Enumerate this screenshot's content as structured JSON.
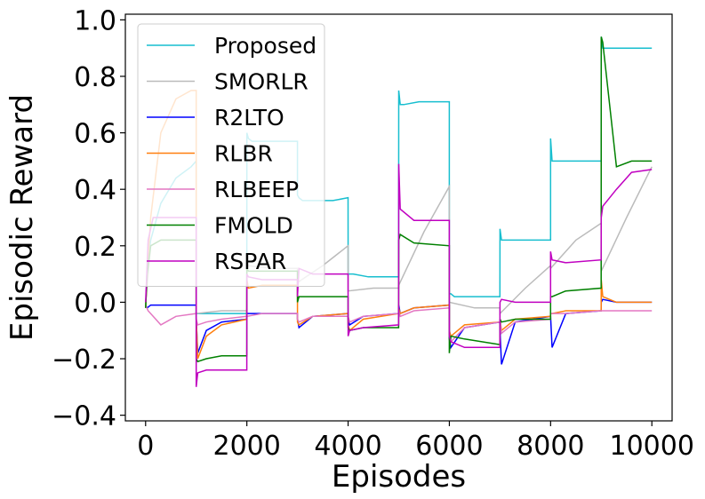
{
  "chart_data": {
    "type": "line",
    "xlabel": "Episodes",
    "ylabel": "Episodic Reward",
    "xlim": [
      -400,
      10400
    ],
    "ylim": [
      -0.42,
      1.02
    ],
    "xticks": [
      0,
      2000,
      4000,
      6000,
      8000,
      10000
    ],
    "xtick_labels": [
      "0",
      "2000",
      "4000",
      "6000",
      "8000",
      "10000"
    ],
    "yticks": [
      -0.4,
      -0.2,
      0.0,
      0.2,
      0.4,
      0.6,
      0.8,
      1.0
    ],
    "ytick_labels": [
      "−0.4",
      "−0.2",
      "0.0",
      "0.2",
      "0.4",
      "0.6",
      "0.8",
      "1.0"
    ],
    "grid": false,
    "legend_position": "top-left",
    "series": [
      {
        "name": "Proposed",
        "color": "#17becf",
        "x": [
          0,
          30,
          100,
          300,
          600,
          900,
          999,
          1000,
          1030,
          1100,
          1400,
          1700,
          1999,
          2000,
          2030,
          2100,
          2400,
          2700,
          2999,
          3000,
          3030,
          3100,
          3400,
          3700,
          3999,
          4000,
          4030,
          4100,
          4400,
          4700,
          4999,
          5000,
          5030,
          5100,
          5400,
          5700,
          5999,
          6000,
          6030,
          6100,
          6400,
          6700,
          6999,
          7000,
          7030,
          7100,
          7400,
          7700,
          7999,
          8000,
          8030,
          8100,
          8400,
          8700,
          8999,
          9000,
          9030,
          9100,
          9400,
          9700,
          9999
        ],
        "y": [
          -0.02,
          0.12,
          0.22,
          0.35,
          0.44,
          0.48,
          0.5,
          -0.04,
          -0.04,
          -0.04,
          -0.04,
          -0.04,
          -0.04,
          0.6,
          0.58,
          0.57,
          0.57,
          0.57,
          0.57,
          0.38,
          0.37,
          0.36,
          0.36,
          0.36,
          0.37,
          0.1,
          0.1,
          0.1,
          0.09,
          0.09,
          0.09,
          0.75,
          0.7,
          0.7,
          0.71,
          0.71,
          0.71,
          0.03,
          0.03,
          0.02,
          0.02,
          0.02,
          0.02,
          0.26,
          0.22,
          0.22,
          0.22,
          0.22,
          0.22,
          0.58,
          0.5,
          0.5,
          0.5,
          0.5,
          0.5,
          0.94,
          0.9,
          0.9,
          0.9,
          0.9,
          0.9
        ]
      },
      {
        "name": "SMORLR",
        "color": "#bbbbbb",
        "x": [
          0,
          100,
          300,
          600,
          999,
          1000,
          1500,
          1999,
          2000,
          2500,
          2999,
          3000,
          3500,
          3999,
          4000,
          4500,
          4999,
          5000,
          5500,
          5999,
          6000,
          6500,
          6999,
          7000,
          7500,
          7999,
          8000,
          8500,
          8999,
          9000,
          9500,
          9999
        ],
        "y": [
          0.0,
          0.2,
          0.22,
          0.22,
          0.22,
          -0.04,
          -0.03,
          -0.03,
          0.13,
          0.12,
          0.12,
          0.07,
          0.13,
          0.2,
          0.04,
          0.05,
          0.05,
          0.06,
          0.25,
          0.41,
          0.0,
          -0.02,
          -0.02,
          -0.04,
          0.05,
          0.13,
          0.12,
          0.22,
          0.28,
          0.11,
          0.3,
          0.48
        ]
      },
      {
        "name": "R2LTO",
        "color": "#0000ff",
        "x": [
          0,
          30,
          100,
          300,
          999,
          1000,
          1030,
          1200,
          1500,
          1999,
          2000,
          2300,
          2999,
          3000,
          3030,
          3300,
          3999,
          4000,
          4030,
          4300,
          4999,
          5000,
          5030,
          5300,
          5999,
          6000,
          6030,
          6300,
          6999,
          7000,
          7030,
          7300,
          7999,
          8000,
          8030,
          8300,
          8999,
          9000,
          9030,
          9300,
          9999
        ],
        "y": [
          -0.01,
          -0.02,
          -0.01,
          -0.01,
          -0.01,
          -0.06,
          -0.18,
          -0.1,
          -0.07,
          -0.06,
          -0.04,
          -0.04,
          -0.04,
          -0.06,
          -0.09,
          -0.05,
          -0.04,
          -0.06,
          -0.08,
          -0.05,
          -0.04,
          -0.01,
          -0.04,
          -0.02,
          -0.01,
          -0.13,
          -0.16,
          -0.09,
          -0.07,
          -0.1,
          -0.22,
          -0.07,
          -0.05,
          -0.05,
          -0.16,
          -0.04,
          -0.03,
          0.0,
          0.01,
          0.0,
          0.0
        ]
      },
      {
        "name": "RLBR",
        "color": "#ff7f0e",
        "x": [
          0,
          30,
          100,
          300,
          600,
          900,
          999,
          1000,
          1030,
          1200,
          1500,
          1999,
          2000,
          2030,
          2300,
          2999,
          3000,
          3030,
          3300,
          3999,
          4000,
          4030,
          4300,
          4999,
          5000,
          5030,
          5300,
          5999,
          6000,
          6030,
          6300,
          6999,
          7000,
          7030,
          7300,
          7999,
          8000,
          8030,
          8300,
          8999,
          9000,
          9030,
          9300,
          9999
        ],
        "y": [
          -0.02,
          0.1,
          0.3,
          0.6,
          0.72,
          0.75,
          0.75,
          -0.05,
          -0.2,
          -0.12,
          -0.08,
          -0.06,
          0.08,
          0.05,
          0.06,
          0.06,
          -0.07,
          -0.08,
          -0.05,
          -0.04,
          -0.08,
          -0.1,
          -0.06,
          -0.04,
          -0.02,
          -0.04,
          -0.02,
          -0.01,
          -0.1,
          -0.12,
          -0.08,
          -0.07,
          -0.06,
          -0.1,
          -0.06,
          -0.05,
          -0.04,
          -0.04,
          -0.03,
          -0.03,
          0.08,
          0.02,
          0.0,
          0.0
        ]
      },
      {
        "name": "RLBEEP",
        "color": "#e377c2",
        "x": [
          0,
          50,
          200,
          300,
          600,
          999,
          1000,
          1030,
          1200,
          1500,
          1999,
          2000,
          2300,
          2999,
          3000,
          3030,
          3300,
          3999,
          4000,
          4030,
          4300,
          4999,
          5000,
          5030,
          5300,
          5999,
          6000,
          6030,
          6300,
          6999,
          7000,
          7030,
          7300,
          7999,
          8000,
          8300,
          8999,
          9000,
          9300,
          9999
        ],
        "y": [
          -0.01,
          -0.03,
          -0.06,
          -0.08,
          -0.05,
          -0.04,
          -0.06,
          -0.08,
          -0.07,
          -0.06,
          -0.05,
          -0.05,
          -0.04,
          -0.04,
          -0.06,
          -0.07,
          -0.05,
          -0.05,
          -0.05,
          -0.07,
          -0.05,
          -0.04,
          -0.03,
          -0.05,
          -0.03,
          -0.02,
          -0.12,
          -0.14,
          -0.09,
          -0.07,
          -0.06,
          -0.11,
          -0.07,
          -0.06,
          -0.04,
          -0.04,
          -0.03,
          -0.03,
          -0.03,
          -0.03
        ]
      },
      {
        "name": "FMOLD",
        "color": "#008000",
        "x": [
          0,
          30,
          100,
          300,
          600,
          999,
          1000,
          1030,
          1200,
          1500,
          1999,
          2000,
          2030,
          2300,
          2999,
          3000,
          3030,
          3300,
          3999,
          4000,
          4030,
          4300,
          4999,
          5000,
          5030,
          5300,
          5999,
          6000,
          6030,
          6300,
          6999,
          7000,
          7030,
          7300,
          7999,
          8000,
          8030,
          8300,
          8999,
          9000,
          9030,
          9300,
          9600,
          9999
        ],
        "y": [
          -0.02,
          0.1,
          0.2,
          0.22,
          0.22,
          0.22,
          -0.2,
          -0.21,
          -0.2,
          -0.19,
          -0.19,
          0.12,
          0.11,
          0.11,
          0.11,
          0.0,
          0.02,
          0.02,
          0.02,
          -0.09,
          -0.1,
          -0.09,
          -0.09,
          0.22,
          0.24,
          0.21,
          0.2,
          -0.18,
          -0.12,
          -0.13,
          -0.15,
          -0.06,
          -0.07,
          -0.06,
          -0.06,
          0.02,
          0.02,
          0.04,
          0.05,
          0.94,
          0.92,
          0.48,
          0.5,
          0.5
        ]
      },
      {
        "name": "RSPAR",
        "color": "#c000c0",
        "x": [
          0,
          50,
          150,
          300,
          600,
          999,
          1000,
          1030,
          1200,
          1500,
          1999,
          2000,
          2030,
          2300,
          2999,
          3000,
          3030,
          3300,
          3999,
          4000,
          4030,
          4300,
          4999,
          5000,
          5030,
          5300,
          5999,
          6000,
          6030,
          6300,
          6999,
          7000,
          7030,
          7300,
          7999,
          8000,
          8030,
          8300,
          8999,
          9000,
          9030,
          9300,
          9600,
          9999
        ],
        "y": [
          0.0,
          0.22,
          0.3,
          0.3,
          0.3,
          0.3,
          -0.3,
          -0.25,
          -0.24,
          -0.24,
          -0.24,
          0.1,
          0.09,
          0.08,
          0.08,
          0.02,
          0.12,
          0.1,
          0.1,
          -0.12,
          -0.1,
          -0.09,
          -0.08,
          0.49,
          0.33,
          0.29,
          0.29,
          -0.12,
          -0.14,
          -0.16,
          -0.16,
          0.0,
          0.01,
          0.0,
          0.0,
          0.18,
          0.15,
          0.14,
          0.15,
          0.3,
          0.34,
          0.4,
          0.46,
          0.47
        ]
      }
    ]
  }
}
